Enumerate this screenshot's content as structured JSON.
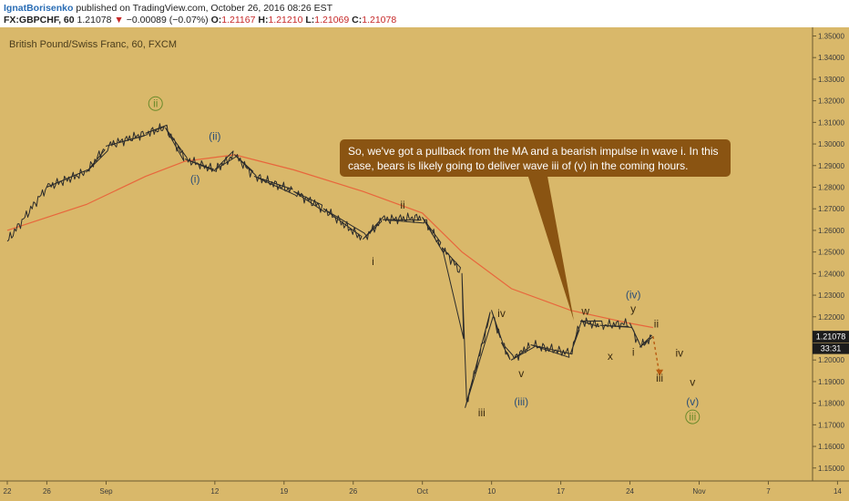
{
  "header": {
    "author": "IgnatBorisenko",
    "published_text": "published on TradingView.com, October 26, 2016 08:26 EST",
    "symbol": "FX:GBPCHF, 60",
    "last": "1.21078",
    "change": "−0.00089 (−0.07%)",
    "ohlc": {
      "o_label": "O:",
      "o": "1.21167",
      "h_label": "H:",
      "h": "1.21210",
      "l_label": "L:",
      "l": "1.21069",
      "c_label": "C:",
      "c": "1.21078"
    }
  },
  "chart_title": "British Pound/Swiss Franc, 60, FXCM",
  "annotation": "So, we've got a pullback from the MA and a bearish impulse in wave i. In this case, bears is likely going to deliver wave iii of (v) in the coming hours.",
  "colors": {
    "background": "#d9b86a",
    "price": "#2b2b2b",
    "ma": "#e8663c",
    "label": "#3a2a10",
    "label_blue": "#2c4f78",
    "label_green": "#6a8a2a",
    "callout": "#8a5412",
    "last_price_bg": "#1c1c1c"
  },
  "chart_data": {
    "type": "line",
    "series": [
      {
        "x": [
          "Aug 22 00:00",
          "Aug 26 00:00",
          "Aug 30 00:00",
          "Sep 01 00:00",
          "Sep 05 00:00",
          "Sep 07 00:00",
          "Sep 09 00:00",
          "Sep 12 00:00",
          "Sep 14 00:00",
          "Sep 16 00:00",
          "Sep 20 00:00",
          "Sep 23 00:00",
          "Sep 27 00:00",
          "Sep 29 00:00",
          "Oct 03 00:00",
          "Oct 05 00:00",
          "Oct 07 00:00",
          "Oct 07 08:00",
          "Oct 10 00:00",
          "Oct 11 00:00",
          "Oct 12 00:00",
          "Oct 14 00:00",
          "Oct 18 00:00",
          "Oct 19 00:00",
          "Oct 21 00:00",
          "Oct 24 00:00",
          "Oct 25 00:00",
          "Oct 26 08:00"
        ],
        "y": [
          1.255,
          1.28,
          1.287,
          1.299,
          1.305,
          1.3075,
          1.293,
          1.288,
          1.295,
          1.285,
          1.278,
          1.27,
          1.256,
          1.265,
          1.266,
          1.252,
          1.24,
          1.178,
          1.223,
          1.208,
          1.2,
          1.207,
          1.203,
          1.218,
          1.216,
          1.217,
          1.206,
          1.21078
        ]
      },
      {
        "x": [
          "Aug 22 00:00",
          "Aug 30 00:00",
          "Sep 05 00:00",
          "Sep 09 00:00",
          "Sep 14 00:00",
          "Sep 20 00:00",
          "Sep 27 00:00",
          "Oct 03 00:00",
          "Oct 07 00:00",
          "Oct 12 00:00",
          "Oct 18 00:00",
          "Oct 24 00:00",
          "Oct 26 08:00"
        ],
        "y": [
          1.26,
          1.272,
          1.285,
          1.292,
          1.295,
          1.288,
          1.278,
          1.268,
          1.25,
          1.233,
          1.223,
          1.217,
          1.215
        ]
      },
      {
        "x": [
          "Oct 26 08:00",
          "Oct 27 00:00"
        ],
        "y": [
          1.211,
          1.193
        ]
      }
    ],
    "x_ticks": [
      "22",
      "26",
      "Sep",
      "12",
      "19",
      "26",
      "Oct",
      "10",
      "17",
      "24",
      "Nov",
      "7",
      "14",
      "18"
    ],
    "y_ticks": [
      "1.35000",
      "1.34000",
      "1.33000",
      "1.32000",
      "1.31000",
      "1.30000",
      "1.29000",
      "1.28000",
      "1.27000",
      "1.26000",
      "1.25000",
      "1.24000",
      "1.23000",
      "1.22000",
      "1.21000",
      "1.20000",
      "1.19000",
      "1.18000",
      "1.17000",
      "1.16000",
      "1.15000"
    ],
    "ylim": [
      1.144,
      1.354
    ],
    "last_price": "1.21078",
    "countdown": "33:31",
    "wave_labels": [
      {
        "text": "ii",
        "x": "Sep 06 00:00",
        "y": 1.317,
        "circle": true,
        "color": "#6a8a2a"
      },
      {
        "text": "(ii)",
        "x": "Sep 12 00:00",
        "y": 1.302,
        "circle": false,
        "color": "#2c4f78"
      },
      {
        "text": "(i)",
        "x": "Sep 10 00:00",
        "y": 1.282,
        "circle": false,
        "color": "#2c4f78"
      },
      {
        "text": "ii",
        "x": "Oct 01 00:00",
        "y": 1.27,
        "circle": false,
        "color": "#3a2a10"
      },
      {
        "text": "i",
        "x": "Sep 28 00:00",
        "y": 1.244,
        "circle": false,
        "color": "#3a2a10"
      },
      {
        "text": "iv",
        "x": "Oct 11 00:00",
        "y": 1.22,
        "circle": false,
        "color": "#3a2a10"
      },
      {
        "text": "iii",
        "x": "Oct 09 00:00",
        "y": 1.174,
        "circle": false,
        "color": "#3a2a10"
      },
      {
        "text": "v",
        "x": "Oct 13 00:00",
        "y": 1.192,
        "circle": false,
        "color": "#3a2a10"
      },
      {
        "text": "(iii)",
        "x": "Oct 13 00:00",
        "y": 1.179,
        "circle": false,
        "color": "#2c4f78"
      },
      {
        "text": "w",
        "x": "Oct 19 12:00",
        "y": 1.221,
        "circle": false,
        "color": "#3a2a10"
      },
      {
        "text": "x",
        "x": "Oct 22 00:00",
        "y": 1.2,
        "circle": false,
        "color": "#3a2a10"
      },
      {
        "text": "(iv)",
        "x": "Oct 24 08:00",
        "y": 1.2285,
        "circle": false,
        "color": "#2c4f78"
      },
      {
        "text": "y",
        "x": "Oct 24 08:00",
        "y": 1.222,
        "circle": false,
        "color": "#3a2a10"
      },
      {
        "text": "ii",
        "x": "Oct 26 16:00",
        "y": 1.215,
        "circle": false,
        "color": "#3a2a10"
      },
      {
        "text": "i",
        "x": "Oct 24 08:00",
        "y": 1.202,
        "circle": false,
        "color": "#3a2a10"
      },
      {
        "text": "iv",
        "x": "Oct 29 00:00",
        "y": 1.2015,
        "circle": false,
        "color": "#3a2a10"
      },
      {
        "text": "iii",
        "x": "Oct 27 00:00",
        "y": 1.19,
        "circle": false,
        "color": "#3a2a10"
      },
      {
        "text": "v",
        "x": "Oct 30 08:00",
        "y": 1.188,
        "circle": false,
        "color": "#3a2a10"
      },
      {
        "text": "(v)",
        "x": "Oct 30 08:00",
        "y": 1.179,
        "circle": false,
        "color": "#2c4f78"
      },
      {
        "text": "iii",
        "x": "Oct 30 08:00",
        "y": 1.172,
        "circle": true,
        "color": "#6a8a2a"
      }
    ]
  }
}
